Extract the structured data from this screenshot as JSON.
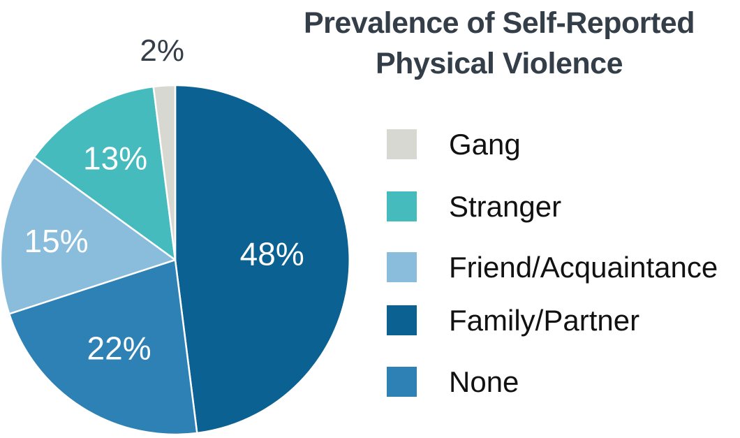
{
  "title": {
    "line1": "Prevalence of Self-Reported",
    "line2": "Physical Violence"
  },
  "colors": {
    "background": "#ffffff",
    "title_text": "#333e48",
    "legend_text": "#111111",
    "slice_label_inside": "#ffffff",
    "slice_label_outside": "#333e48",
    "slice_divider": "#ffffff"
  },
  "chart_data": {
    "type": "pie",
    "title": "Prevalence of Self-Reported Physical Violence",
    "start_angle_deg": 0,
    "direction": "clockwise",
    "legend_position": "right",
    "slices": [
      {
        "label": "Family/Partner",
        "value": 48,
        "display": "48%",
        "color": "#0b6191",
        "label_radius": 0.556,
        "label_inside": true
      },
      {
        "label": "None",
        "value": 22,
        "display": "22%",
        "color": "#2e81b5",
        "label_radius": 0.6,
        "label_inside": true
      },
      {
        "label": "Friend/Acquaintance",
        "value": 15,
        "display": "15%",
        "color": "#8abcdc",
        "label_radius": 0.69,
        "label_inside": true
      },
      {
        "label": "Stranger",
        "value": 13,
        "display": "13%",
        "color": "#45bbbe",
        "label_radius": 0.675,
        "label_inside": true
      },
      {
        "label": "Gang",
        "value": 2,
        "display": "2%",
        "color": "#d8d8d3",
        "label_radius": 1.2,
        "label_inside": false
      }
    ],
    "legend_order": [
      "Gang",
      "Stranger",
      "Friend/Acquaintance",
      "Family/Partner",
      "None"
    ]
  }
}
